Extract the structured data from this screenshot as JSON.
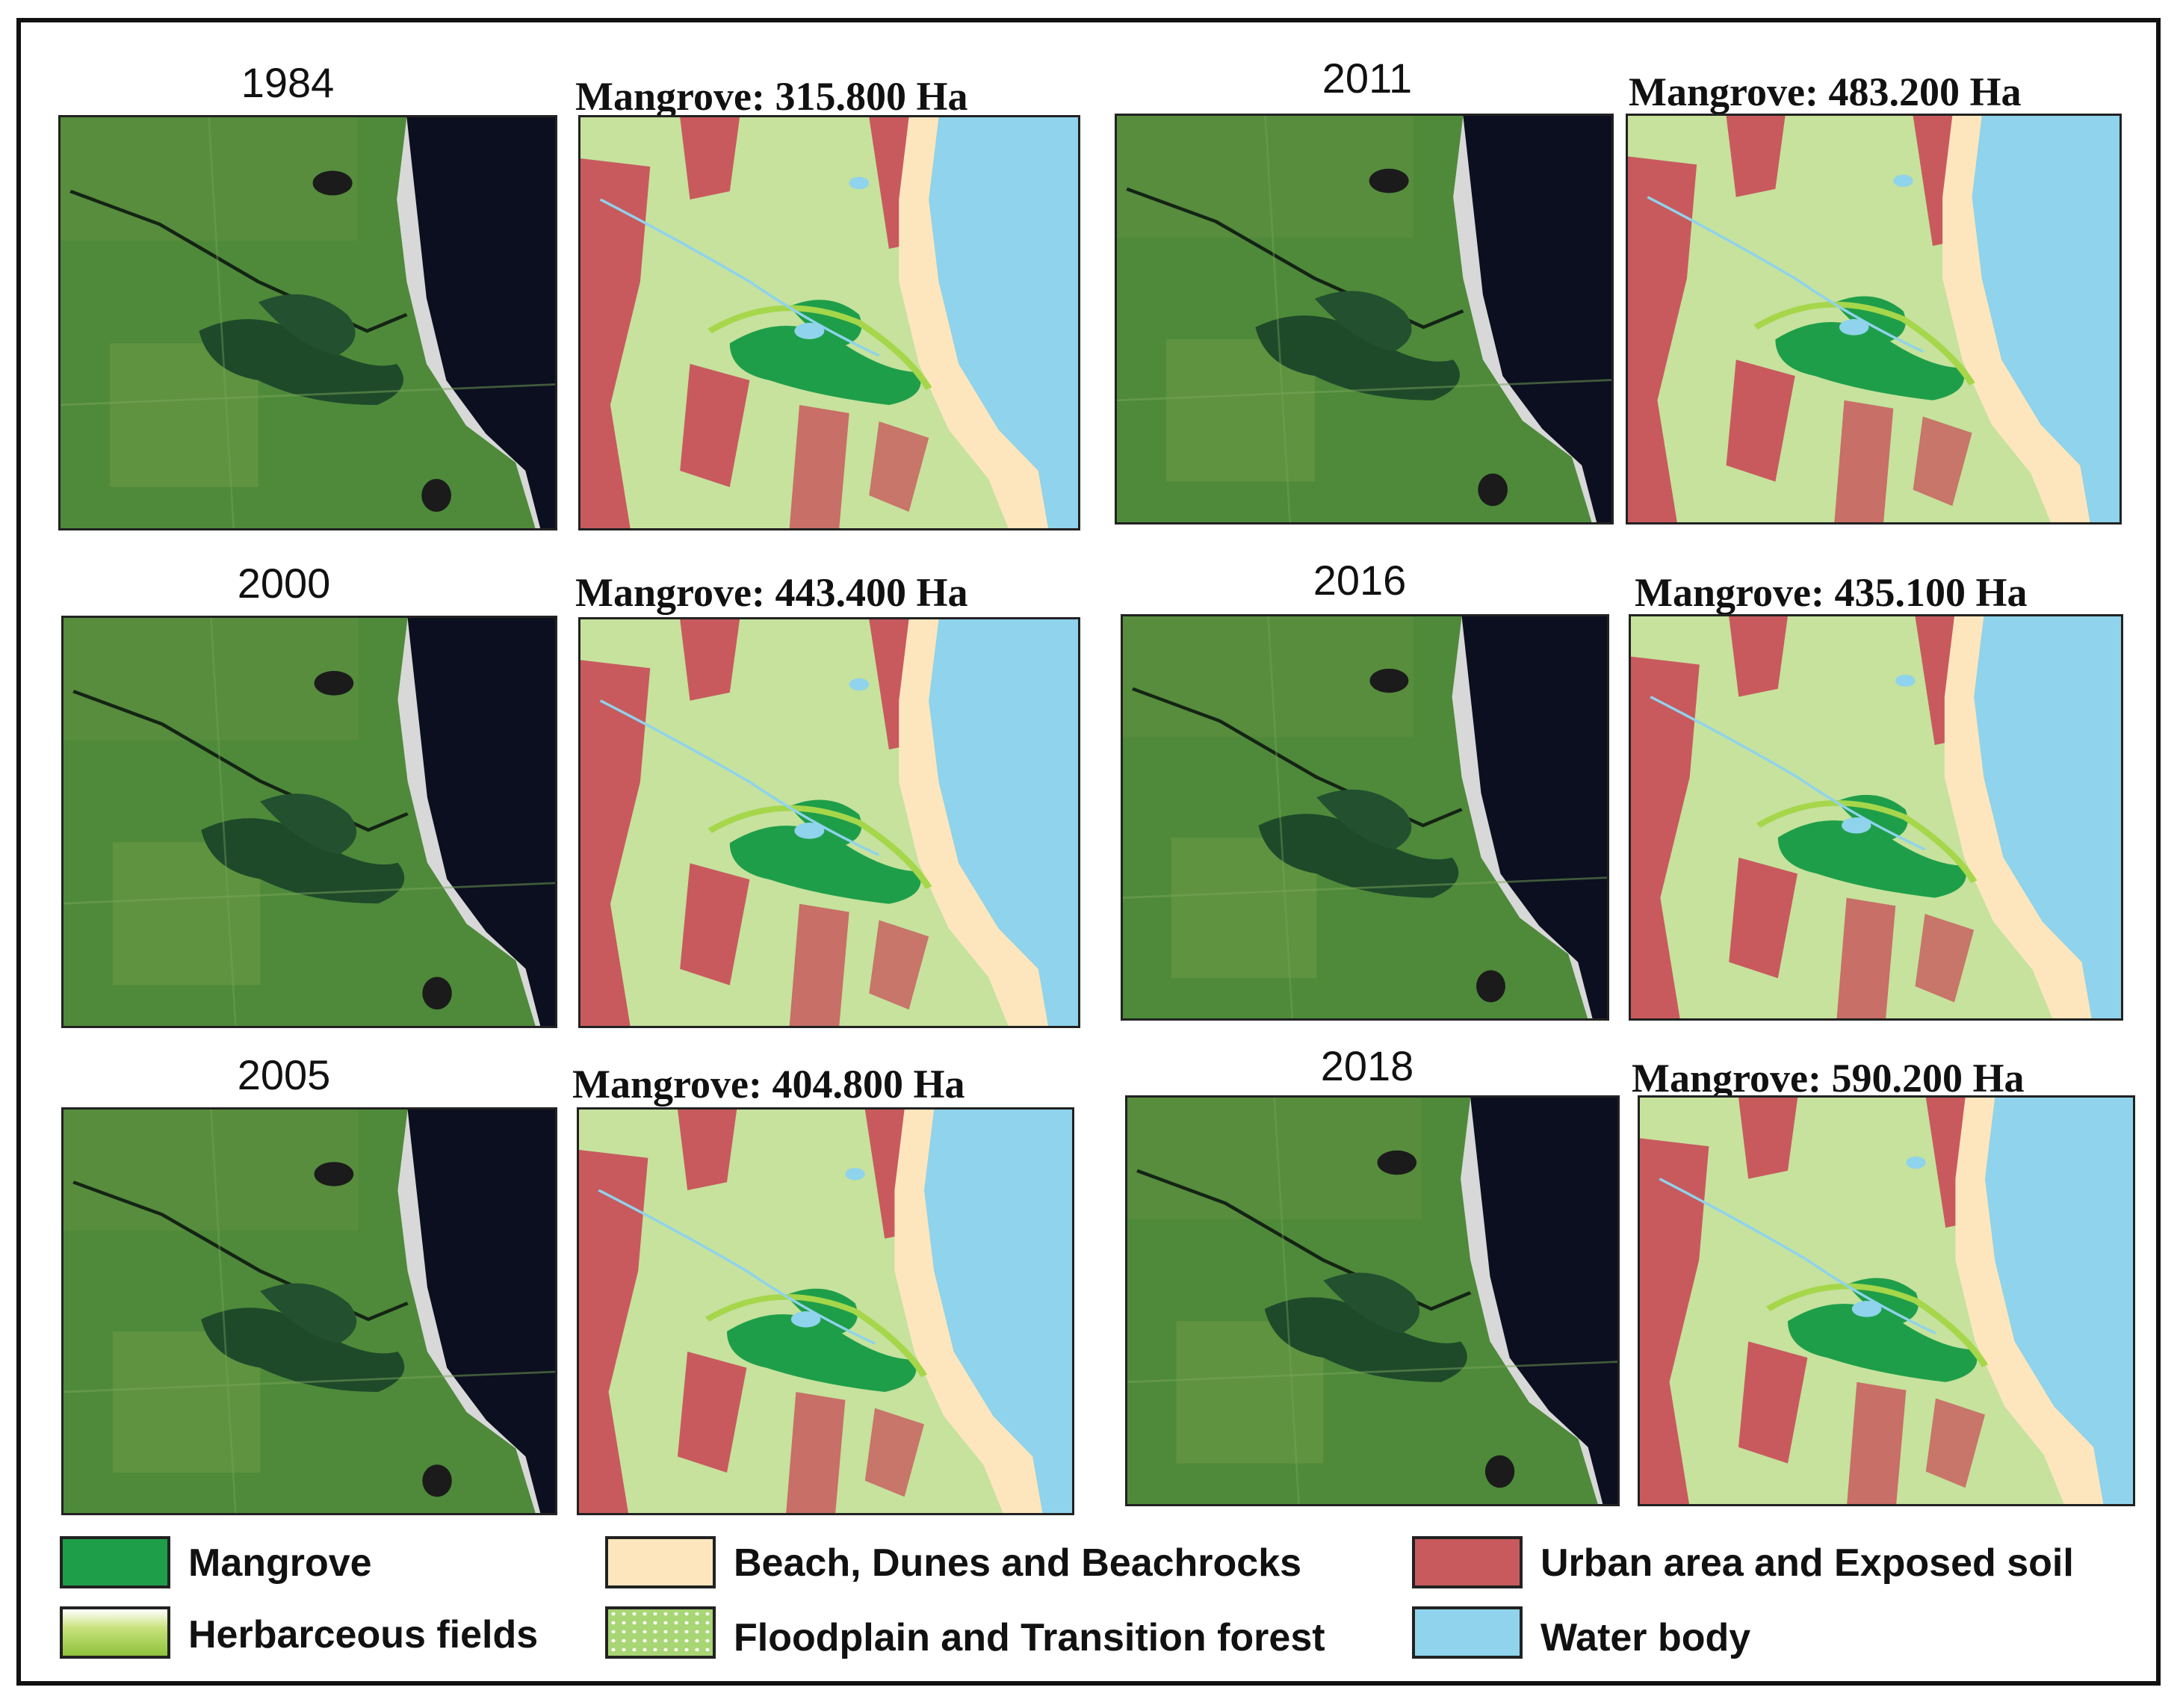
{
  "figure": {
    "panels": [
      {
        "year": "1984",
        "mangrove_label": "Mangrove: 315.800 Ha"
      },
      {
        "year": "2000",
        "mangrove_label": "Mangrove: 443.400 Ha"
      },
      {
        "year": "2005",
        "mangrove_label": "Mangrove: 404.800 Ha"
      },
      {
        "year": "2011",
        "mangrove_label": "Mangrove: 483.200 Ha"
      },
      {
        "year": "2016",
        "mangrove_label": "Mangrove: 435.100 Ha"
      },
      {
        "year": "2018",
        "mangrove_label": "Mangrove: 590.200 Ha"
      }
    ],
    "legend": [
      {
        "label": "Mangrove",
        "color": "#1f9e4a"
      },
      {
        "label": "Herbarceous fields",
        "color": "#a6d64a"
      },
      {
        "label": "Beach, Dunes and Beachrocks",
        "color": "#fde6bd"
      },
      {
        "label": "Floodplain and Transition forest",
        "color": "#c6e29d"
      },
      {
        "label": "Urban area and Exposed soil",
        "color": "#c85a5e"
      },
      {
        "label": "Water body",
        "color": "#8fd3ec"
      }
    ],
    "satellite_colors": {
      "land": "#4d8a3a",
      "dark_land": "#2f5e2d",
      "mangrove_dark": "#1e4a2a",
      "sea": "#0b0f1f",
      "sand": "#dcdcdc"
    }
  }
}
